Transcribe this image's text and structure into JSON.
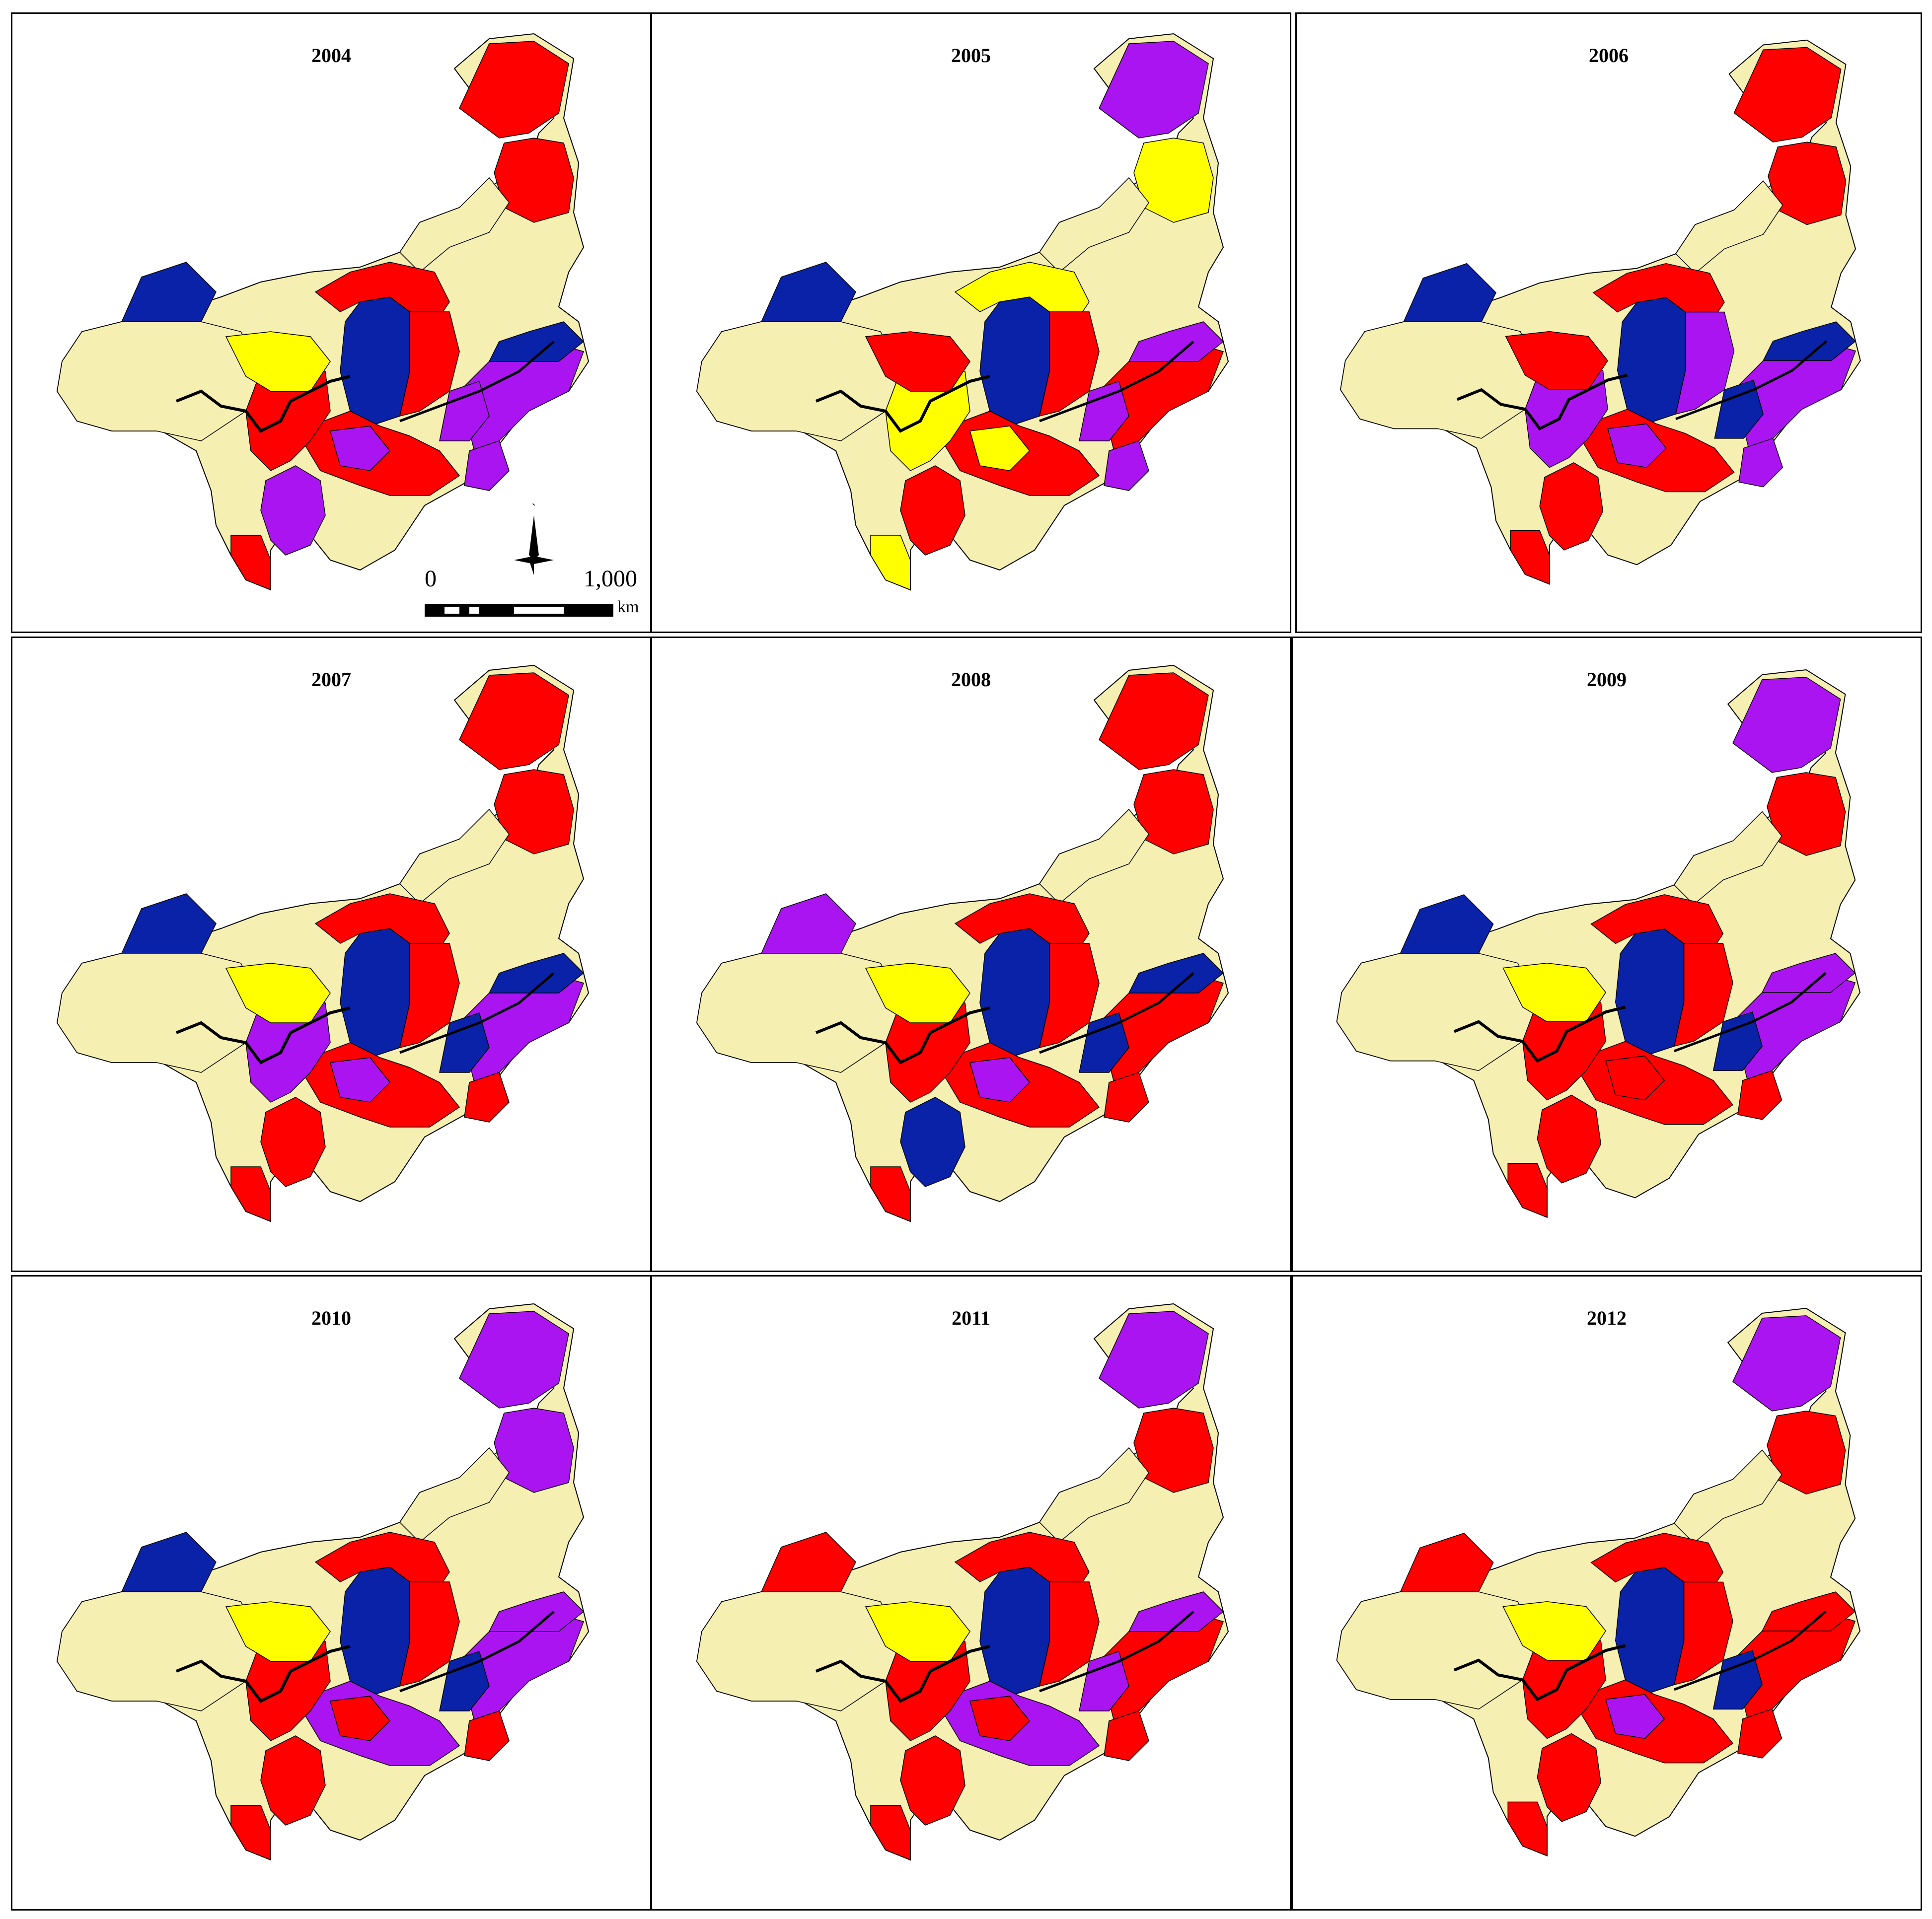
{
  "figure": {
    "panels": [
      {
        "year": "2004",
        "palette": [
          "red",
          "tan",
          "blue",
          "purple",
          "yellow"
        ],
        "northeast_region": "red",
        "west_region": "blue",
        "has_scale": true
      },
      {
        "year": "2005",
        "palette": [
          "red",
          "tan",
          "blue",
          "purple",
          "yellow"
        ],
        "northeast_region": "purple",
        "west_region": "blue",
        "has_scale": false
      },
      {
        "year": "2006",
        "palette": [
          "red",
          "tan",
          "blue",
          "purple",
          "yellow"
        ],
        "northeast_region": "red",
        "west_region": "blue",
        "has_scale": false
      },
      {
        "year": "2007",
        "palette": [
          "red",
          "tan",
          "blue",
          "purple",
          "yellow"
        ],
        "northeast_region": "red",
        "west_region": "blue",
        "has_scale": false
      },
      {
        "year": "2008",
        "palette": [
          "red",
          "tan",
          "blue",
          "purple",
          "yellow"
        ],
        "northeast_region": "red",
        "west_region": "purple",
        "has_scale": false
      },
      {
        "year": "2009",
        "palette": [
          "red",
          "tan",
          "blue",
          "purple",
          "yellow"
        ],
        "northeast_region": "purple",
        "west_region": "blue",
        "has_scale": false
      },
      {
        "year": "2010",
        "palette": [
          "red",
          "tan",
          "blue",
          "purple",
          "yellow"
        ],
        "northeast_region": "purple",
        "west_region": "blue",
        "has_scale": false
      },
      {
        "year": "2011",
        "palette": [
          "red",
          "tan",
          "blue",
          "purple",
          "yellow"
        ],
        "northeast_region": "purple",
        "west_region": "red",
        "has_scale": false
      },
      {
        "year": "2012",
        "palette": [
          "red",
          "tan",
          "blue",
          "purple",
          "yellow"
        ],
        "northeast_region": "purple",
        "west_region": "red",
        "has_scale": false
      }
    ],
    "scale_bar": {
      "start_label": "0",
      "end_label": "1,000",
      "unit": "km"
    },
    "colors": {
      "red": "#ff0000",
      "tan": "#f5efb2",
      "blue": "#0a22a8",
      "purple": "#aa14f0",
      "yellow": "#ffff00",
      "outline": "#000000"
    }
  }
}
